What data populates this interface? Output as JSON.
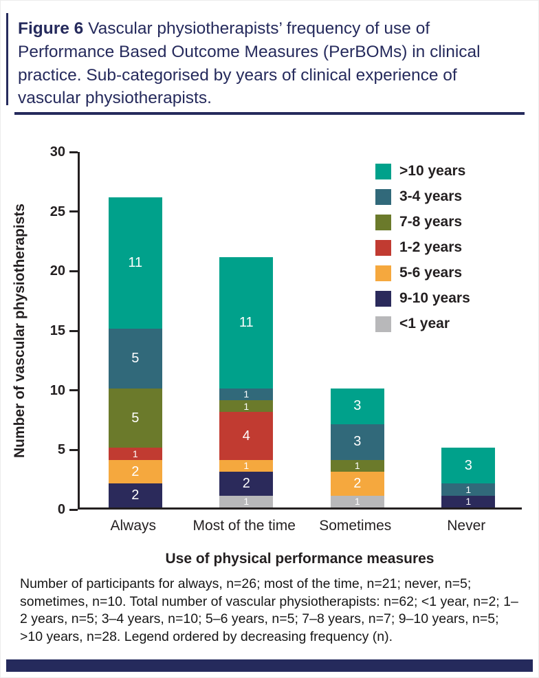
{
  "figure": {
    "title_bold": "Figure 6",
    "title_rest": " Vascular physiotherapists’ frequency of use of Performance Based Outcome Measures (PerBOMs) in clinical practice. Sub-categorised by years of clinical experience of vascular physiotherapists."
  },
  "caption": {
    "text": "Number of participants for always, n=26; most of the time, n=21; never, n=5; sometimes, n=10. Total number of vascular physiotherapists: n=62; <1 year, n=2; 1–2 years, n=5; 3–4 years, n=10; 5–6 years, n=5; 7–8 years, n=7; 9–10 years, n=5; >10 years, n=28. Legend ordered by decreasing frequency (n)."
  },
  "chart_data": {
    "type": "bar",
    "stacked": true,
    "xlabel": "Use of physical performance measures",
    "ylabel": "Number of vascular physiotherapists",
    "ylim": [
      0,
      30
    ],
    "yticks": [
      0,
      5,
      10,
      15,
      20,
      25,
      30
    ],
    "grid": false,
    "legend_position": "top-right",
    "categories": [
      "Always",
      "Most of the time",
      "Sometimes",
      "Never"
    ],
    "category_totals": [
      26,
      21,
      10,
      5
    ],
    "stack_order_bottom_to_top": [
      "<1 year",
      "9-10 years",
      "5-6 years",
      "1-2 years",
      "7-8 years",
      "3-4 years",
      ">10 years"
    ],
    "series": [
      {
        "name": ">10 years",
        "color": "#00a18b",
        "values": [
          11,
          11,
          3,
          3
        ]
      },
      {
        "name": "3-4 years",
        "color": "#31697a",
        "values": [
          5,
          1,
          3,
          1
        ]
      },
      {
        "name": "7-8 years",
        "color": "#6b7a2b",
        "values": [
          5,
          1,
          1,
          0
        ]
      },
      {
        "name": "1-2 years",
        "color": "#c13b31",
        "values": [
          1,
          4,
          0,
          0
        ]
      },
      {
        "name": "5-6 years",
        "color": "#f5a83e",
        "values": [
          2,
          1,
          2,
          0
        ]
      },
      {
        "name": "9-10 years",
        "color": "#2b2a5b",
        "values": [
          2,
          2,
          0,
          1
        ]
      },
      {
        "name": "<1 year",
        "color": "#b8b8ba",
        "values": [
          0,
          1,
          1,
          0
        ]
      }
    ]
  }
}
